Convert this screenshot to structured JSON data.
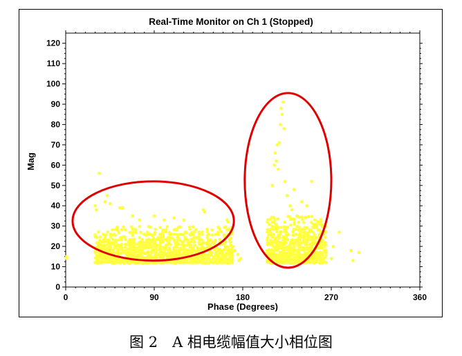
{
  "figure": {
    "caption": "图 2　A 相电缆幅值大小相位图"
  },
  "chart_data": {
    "type": "scatter",
    "title": "Real-Time Monitor on Ch 1 (Stopped)",
    "xlabel": "Phase (Degrees)",
    "ylabel": "Mag",
    "xlim": [
      0,
      360
    ],
    "ylim": [
      0,
      125
    ],
    "xticks": [
      0,
      90,
      180,
      270,
      360
    ],
    "yticks": [
      0,
      10,
      20,
      30,
      40,
      50,
      60,
      70,
      80,
      90,
      100,
      110,
      120
    ],
    "grid": false,
    "point_color": "#ffff40",
    "annotation_color": "#e00000",
    "clusters": [
      {
        "phase_range": [
          0,
          2
        ],
        "mag_range": [
          13,
          16
        ],
        "points": [
          [
            1,
            14
          ],
          [
            1,
            15
          ]
        ]
      },
      {
        "phase_range": [
          30,
          180
        ],
        "mag_range": [
          12,
          56
        ],
        "points": [
          [
            30,
            40
          ],
          [
            31,
            38
          ],
          [
            34,
            56
          ],
          [
            40,
            42
          ],
          [
            42,
            45
          ],
          [
            45,
            41
          ],
          [
            55,
            39
          ],
          [
            58,
            39
          ],
          [
            68,
            35
          ],
          [
            75,
            33
          ],
          [
            90,
            35
          ],
          [
            100,
            33
          ],
          [
            110,
            34
          ],
          [
            120,
            33
          ],
          [
            140,
            38
          ],
          [
            141,
            37
          ],
          [
            164,
            33
          ],
          [
            165,
            32
          ],
          [
            168,
            24
          ],
          [
            170,
            20
          ],
          [
            172,
            18
          ],
          [
            175,
            16
          ],
          [
            178,
            14
          ],
          [
            176,
            13
          ]
        ],
        "dense_region": {
          "phase": [
            30,
            170
          ],
          "mag": [
            12,
            30
          ]
        }
      },
      {
        "phase_range": [
          205,
          300
        ],
        "mag_range": [
          12,
          91
        ],
        "points": [
          [
            207,
            18
          ],
          [
            210,
            50
          ],
          [
            212,
            60
          ],
          [
            213,
            66
          ],
          [
            214,
            62
          ],
          [
            215,
            70
          ],
          [
            216,
            58
          ],
          [
            217,
            71
          ],
          [
            218,
            80
          ],
          [
            219,
            88
          ],
          [
            220,
            85
          ],
          [
            221,
            91
          ],
          [
            222,
            78
          ],
          [
            223,
            52
          ],
          [
            225,
            45
          ],
          [
            228,
            40
          ],
          [
            230,
            38
          ],
          [
            232,
            48
          ],
          [
            235,
            35
          ],
          [
            240,
            42
          ],
          [
            245,
            40
          ],
          [
            250,
            52
          ],
          [
            255,
            30
          ],
          [
            258,
            25
          ],
          [
            263,
            20
          ],
          [
            265,
            17
          ],
          [
            270,
            14
          ],
          [
            272,
            20
          ],
          [
            278,
            27
          ],
          [
            290,
            18
          ],
          [
            292,
            13
          ],
          [
            298,
            17
          ]
        ],
        "dense_region": {
          "phase": [
            205,
            265
          ],
          "mag": [
            12,
            35
          ]
        }
      }
    ],
    "annotations": [
      {
        "type": "ellipse",
        "center": [
          89,
          32.5
        ],
        "radius_phase": 82,
        "radius_mag": 19.5
      },
      {
        "type": "ellipse",
        "center": [
          226,
          52.5
        ],
        "radius_phase": 44,
        "radius_mag": 43
      }
    ]
  }
}
